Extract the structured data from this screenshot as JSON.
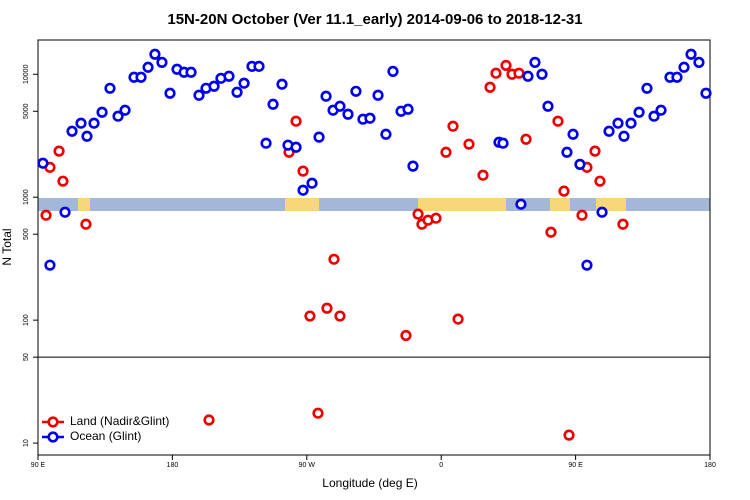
{
  "chart_data": {
    "type": "scatter",
    "title": "15N-20N October (Ver 11.1_early)   2014-09-06 to 2018-12-31",
    "x_label": "Longitude (deg E)",
    "y_label": "N Total",
    "xlim": [
      90,
      540
    ],
    "xticks": [
      {
        "value": 90,
        "label": "90 E"
      },
      180,
      {
        "value": 270,
        "label": "90 W"
      },
      {
        "value": 360,
        "label": "0"
      },
      {
        "value": 450,
        "label": "90 E"
      },
      {
        "value": 540,
        "label": "180"
      }
    ],
    "ylim": [
      8,
      19000
    ],
    "yticks": [
      10,
      50,
      100,
      500,
      1000,
      5000,
      10000
    ],
    "y_log": true,
    "reference_line": 50,
    "legend": "bottom-left",
    "series": [
      {
        "name": "Land (Nadir&Glint)",
        "color": "#ee0000",
        "x": [
          95.4,
          98.0,
          104.1,
          106.7,
          122.1,
          204.5,
          258.1,
          262.8,
          267.5,
          272.1,
          277.5,
          283.5,
          288.2,
          292.2,
          336.4,
          344.5,
          347.1,
          351.2,
          356.5,
          363.2,
          367.9,
          371.3,
          378.6,
          388.0,
          392.7,
          396.7,
          403.4,
          407.4,
          412.1,
          416.8,
          433.5,
          438.2,
          442.2,
          445.6,
          454.3,
          457.6,
          463.0,
          466.3,
          481.7
        ],
        "values": [
          714,
          1750,
          2370,
          1350,
          603,
          15.4,
          2320,
          4150,
          1630,
          108,
          17.5,
          125,
          313,
          108,
          75,
          728,
          603,
          650,
          675,
          2320,
          3780,
          102,
          2700,
          1510,
          7840,
          10200,
          11800,
          10000,
          10200,
          2960,
          519,
          4150,
          1120,
          11.6,
          714,
          1750,
          2370,
          1350,
          603
        ]
      },
      {
        "name": "Ocean (Glint)",
        "color": "#0000ee",
        "x": [
          93.3,
          98.0,
          108.1,
          112.8,
          118.8,
          122.8,
          127.5,
          132.9,
          138.2,
          143.6,
          148.3,
          154.3,
          159.0,
          163.7,
          168.3,
          173.0,
          178.4,
          183.1,
          187.8,
          192.5,
          197.8,
          202.5,
          207.9,
          212.5,
          217.9,
          223.3,
          228.0,
          233.3,
          238.0,
          242.7,
          247.4,
          253.4,
          257.4,
          262.8,
          267.5,
          273.5,
          278.2,
          282.9,
          287.6,
          292.2,
          297.6,
          302.9,
          307.6,
          312.3,
          317.7,
          323.0,
          327.7,
          333.1,
          337.8,
          341.1,
          398.7,
          401.4,
          413.4,
          418.1,
          422.8,
          427.5,
          431.5,
          444.2,
          448.3,
          452.9,
          457.6,
          467.7,
          472.4,
          478.4,
          482.4,
          487.1,
          492.5,
          497.8,
          502.5,
          507.2,
          513.2,
          517.9,
          522.6,
          527.3,
          532.6,
          537.3
        ],
        "values": [
          1890,
          280,
          755,
          3440,
          4000,
          3130,
          4000,
          4910,
          7690,
          4560,
          5100,
          9460,
          9460,
          11400,
          14550,
          12500,
          7010,
          10990,
          10380,
          10380,
          6750,
          7690,
          7990,
          9270,
          9630,
          7140,
          8460,
          11600,
          11600,
          2750,
          5700,
          8300,
          2650,
          2550,
          1140,
          1300,
          3080,
          6630,
          5100,
          5490,
          4730,
          7270,
          4310,
          4390,
          6750,
          3250,
          10560,
          5000,
          5190,
          1790,
          2800,
          2750,
          877,
          9630,
          12500,
          10000,
          5490,
          2320,
          3250,
          1850,
          280,
          755,
          3440,
          4000,
          3130,
          4000,
          4910,
          7690,
          4560,
          5100,
          9460,
          9460,
          11400,
          14550,
          12500,
          7010
        ]
      }
    ]
  }
}
